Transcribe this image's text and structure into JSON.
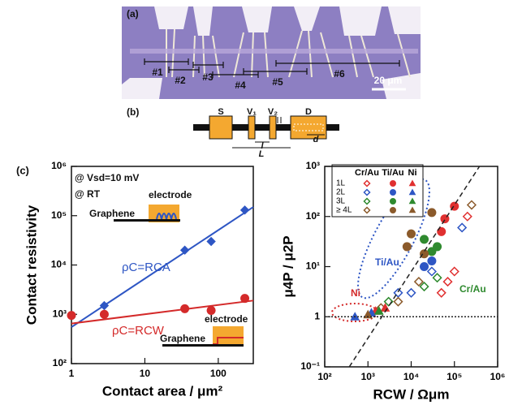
{
  "panel_a": {
    "label": "(a)",
    "regions": [
      "#1",
      "#2",
      "#3",
      "#4",
      "#5",
      "#6"
    ],
    "scale_bar": "20 μm"
  },
  "panel_b": {
    "label": "(b)",
    "terminals": [
      "S",
      "V₁",
      "V₂",
      "D"
    ],
    "dimensions": [
      "l",
      "L",
      "d"
    ]
  },
  "panel_c": {
    "label": "(c)"
  },
  "chart_data": [
    {
      "type": "scatter",
      "log_x": true,
      "log_y": true,
      "x_label": "Contact area / μm²",
      "y_label": "Contact resistivity",
      "xlim": [
        1,
        300
      ],
      "ylim": [
        100,
        1000000
      ],
      "xticks": [
        1,
        10,
        100
      ],
      "yticks": [
        {
          "value": 100,
          "label": "10²"
        },
        {
          "value": 1000,
          "label": "10³"
        },
        {
          "value": 10000,
          "label": "10⁴"
        },
        {
          "value": 100000,
          "label": "10⁵"
        },
        {
          "value": 1000000,
          "label": "10⁶"
        }
      ],
      "annotations": [
        {
          "text": "@ Vsd=10 mV",
          "color": "#111"
        },
        {
          "text": "@ RT",
          "color": "#111"
        },
        {
          "text": "electrode",
          "color": "#111"
        },
        {
          "text": "Graphene",
          "color": "#111"
        },
        {
          "text": "electrode",
          "color": "#111"
        },
        {
          "text": "Graphene",
          "color": "#111"
        }
      ],
      "series": [
        {
          "name": "ρC=RCA",
          "color": "#2e56c4",
          "marker": "diamond",
          "x": [
            2.8,
            35,
            80,
            230
          ],
          "values": [
            1500,
            20000,
            30000,
            130000
          ]
        },
        {
          "color": "#2e56c4",
          "style": "line",
          "x": [
            1,
            300
          ],
          "values": [
            550,
            150000
          ]
        },
        {
          "name": "ρC=RCW",
          "color": "#d42a2a",
          "marker": "circle",
          "x": [
            1,
            2.8,
            35,
            80,
            230
          ],
          "values": [
            950,
            1000,
            1300,
            1200,
            2100
          ]
        },
        {
          "color": "#d42a2a",
          "style": "line",
          "x": [
            1,
            300
          ],
          "values": [
            650,
            1900
          ]
        }
      ]
    },
    {
      "type": "scatter",
      "log_x": true,
      "log_y": true,
      "x_label": "RCW / Ωμm",
      "y_label": "μ4P / μ2P",
      "xlim": [
        100,
        1000000
      ],
      "ylim": [
        0.1,
        1000
      ],
      "xticks": [
        {
          "value": 100,
          "label": "10²"
        },
        {
          "value": 1000,
          "label": "10³"
        },
        {
          "value": 10000,
          "label": "10⁴"
        },
        {
          "value": 100000,
          "label": "10⁵"
        },
        {
          "value": 1000000,
          "label": "10⁶"
        }
      ],
      "yticks": [
        {
          "value": 0.1,
          "label": "10⁻¹"
        },
        1,
        {
          "value": 10,
          "label": "10¹"
        },
        {
          "value": 100,
          "label": "10²"
        },
        {
          "value": 1000,
          "label": "10³"
        }
      ],
      "legend": {
        "columns": [
          "Cr/Au",
          "Ti/Au",
          "Ni"
        ],
        "rows": [
          "1L",
          "2L",
          "3L",
          "≥ 4L"
        ]
      },
      "annotations": [
        {
          "text": "Ti/Au",
          "color": "#2e56c4"
        },
        {
          "text": "Cr/Au",
          "color": "#2f8a2f"
        },
        {
          "text": "Ni",
          "color": "#d42a2a"
        }
      ],
      "series": [
        {
          "metal": "Cr/Au",
          "layers": "1L",
          "color": "#e03030",
          "marker": "diamond-open",
          "x": [
            100000,
            50000,
            200000,
            70000
          ],
          "values": [
            8,
            3,
            100,
            5
          ]
        },
        {
          "metal": "Cr/Au",
          "layers": "2L",
          "color": "#2e56c4",
          "marker": "diamond-open",
          "x": [
            30000,
            10000,
            5000,
            150000
          ],
          "values": [
            8,
            3,
            3,
            60
          ]
        },
        {
          "metal": "Cr/Au",
          "layers": "3L",
          "color": "#2f8a2f",
          "marker": "diamond-open",
          "x": [
            40000,
            20000,
            3000
          ],
          "values": [
            6,
            4,
            2
          ]
        },
        {
          "metal": "Cr/Au",
          "layers": "≥ 4L",
          "color": "#8b5a2b",
          "marker": "diamond-open",
          "x": [
            250000,
            15000,
            5000,
            2000
          ],
          "values": [
            170,
            5,
            2,
            1.5
          ]
        },
        {
          "metal": "Ti/Au",
          "layers": "1L",
          "color": "#e03030",
          "marker": "circle",
          "x": [
            50000,
            60000,
            100000
          ],
          "values": [
            50,
            90,
            160
          ]
        },
        {
          "metal": "Ti/Au",
          "layers": "2L",
          "color": "#2e56c4",
          "marker": "circle",
          "x": [
            20000,
            30000
          ],
          "values": [
            10,
            13
          ]
        },
        {
          "metal": "Ti/Au",
          "layers": "3L",
          "color": "#2f8a2f",
          "marker": "circle",
          "x": [
            20000,
            30000,
            40000
          ],
          "values": [
            35,
            20,
            25
          ]
        },
        {
          "metal": "Ti/Au",
          "layers": "≥ 4L",
          "color": "#8b5a2b",
          "marker": "circle",
          "x": [
            10000,
            30000,
            20000,
            8000
          ],
          "values": [
            45,
            120,
            18,
            25
          ]
        },
        {
          "metal": "Ni",
          "layers": "1L",
          "color": "#e03030",
          "marker": "triangle",
          "x": [
            1500,
            2500
          ],
          "values": [
            1.3,
            1.5
          ]
        },
        {
          "metal": "Ni",
          "layers": "2L",
          "color": "#2e56c4",
          "marker": "triangle",
          "x": [
            500,
            1200
          ],
          "values": [
            1,
            1.2
          ]
        },
        {
          "metal": "Ni",
          "layers": "3L",
          "color": "#2f8a2f",
          "marker": "triangle",
          "x": [
            1800
          ],
          "values": [
            1.3
          ]
        },
        {
          "metal": "Ni",
          "layers": "≥ 4L",
          "color": "#8b5a2b",
          "marker": "triangle",
          "x": [
            1000
          ],
          "values": [
            1.1
          ]
        },
        {
          "color": "#222",
          "style": "dashed",
          "x": [
            370,
            380000
          ],
          "values": [
            0.1,
            1000
          ]
        },
        {
          "color": "#222",
          "style": "dotted",
          "x": [
            100,
            1000000
          ],
          "values": [
            1,
            1
          ]
        }
      ]
    }
  ]
}
